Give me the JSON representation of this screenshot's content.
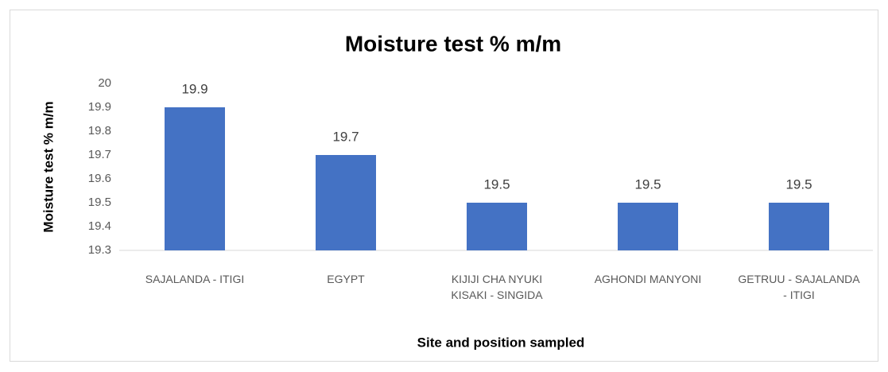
{
  "chart_data": {
    "type": "bar",
    "title": "Moisture test % m/m",
    "y_label": "Moisture test % m/m",
    "x_label": "Site and position sampled",
    "categories": [
      "SAJALANDA - ITIGI",
      "EGYPT",
      "KIJIJI CHA NYUKI KISAKI - SINGIDA",
      "AGHONDI MANYONI",
      "GETRUU - SAJALANDA - ITIGI"
    ],
    "values": [
      19.9,
      19.7,
      19.5,
      19.5,
      19.5
    ],
    "color": "#4472c4",
    "ylim": [
      19.3,
      20
    ],
    "yticks": [
      19.3,
      19.4,
      19.5,
      19.6,
      19.7,
      19.8,
      19.9,
      20
    ],
    "grid": false
  }
}
